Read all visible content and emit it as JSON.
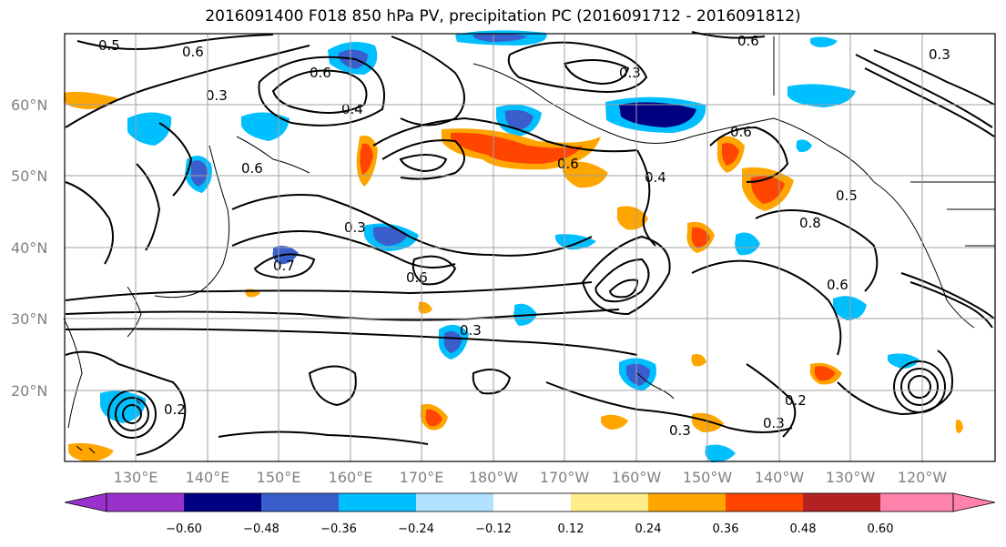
{
  "title": "2016091400 F018 850 hPa PV, precipitation PC (2016091712 - 2016091812)",
  "map": {
    "lat_labels": [
      "60°N",
      "50°N",
      "40°N",
      "30°N",
      "20°N"
    ],
    "lon_labels": [
      "130°E",
      "140°E",
      "150°E",
      "160°E",
      "170°E",
      "180°W",
      "170°W",
      "160°W",
      "150°W",
      "140°W",
      "130°W",
      "120°W"
    ],
    "pv_contour_labels": [
      "0.5",
      "0.6",
      "0.3",
      "0.6",
      "0.4",
      "0.6",
      "0.3",
      "0.3",
      "0.6",
      "0.7",
      "0.6",
      "0.3",
      "0.6",
      "0.4",
      "0.6",
      "0.5",
      "0.8",
      "0.6",
      "0.3",
      "0.2",
      "0.3",
      "0.2",
      "0.3"
    ]
  },
  "colorbar": {
    "ticks": [
      "−0.60",
      "−0.48",
      "−0.36",
      "−0.24",
      "−0.12",
      "0.12",
      "0.24",
      "0.36",
      "0.48",
      "0.60"
    ],
    "colors": [
      "#9932cc",
      "#000080",
      "#3a5fcd",
      "#00bfff",
      "#b0e2ff",
      "#ffffff",
      "#ffec8b",
      "#ffa500",
      "#ff4500",
      "#b22222",
      "#ff82ab"
    ]
  }
}
